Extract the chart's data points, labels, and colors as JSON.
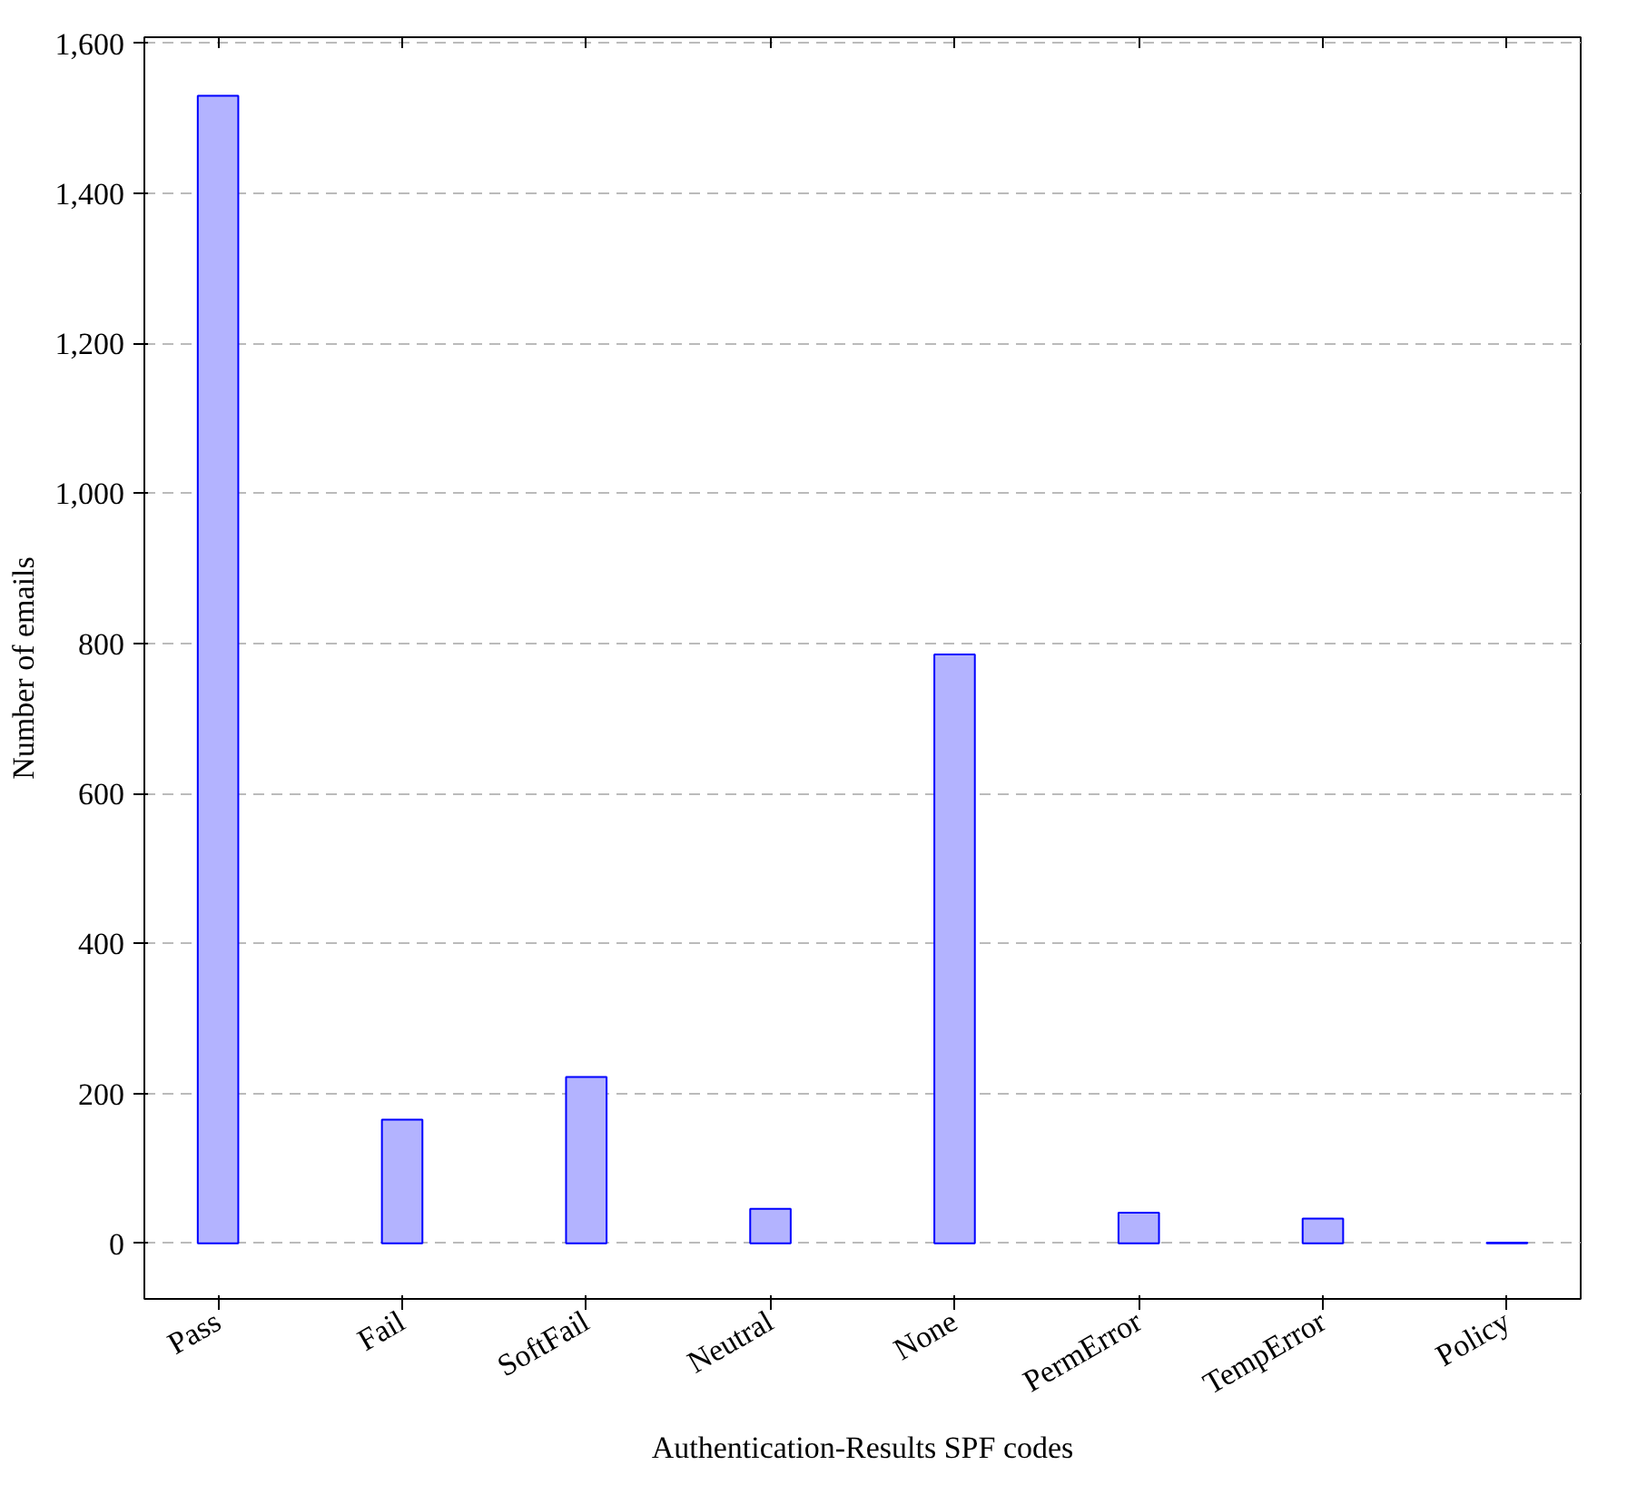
{
  "chart_data": {
    "type": "bar",
    "xlabel": "Authentication-Results SPF codes",
    "ylabel": "Number of emails",
    "categories": [
      "Pass",
      "Fail",
      "SoftFail",
      "Neutral",
      "None",
      "PermError",
      "TempError",
      "Policy"
    ],
    "values": [
      1530,
      165,
      222,
      46,
      785,
      41,
      33,
      1
    ],
    "color": "#b3b3ff",
    "ylim": [
      -74,
      1608
    ],
    "yticks": [
      {
        "value": 0,
        "label": "0"
      },
      {
        "value": 200,
        "label": "200"
      },
      {
        "value": 400,
        "label": "400"
      },
      {
        "value": 600,
        "label": "600"
      },
      {
        "value": 800,
        "label": "800"
      },
      {
        "value": 1000,
        "label": "1,000"
      },
      {
        "value": 1200,
        "label": "1,200"
      },
      {
        "value": 1400,
        "label": "1,400"
      },
      {
        "value": 1600,
        "label": "1,600"
      }
    ],
    "grid": "y",
    "line_style": "dashed"
  }
}
